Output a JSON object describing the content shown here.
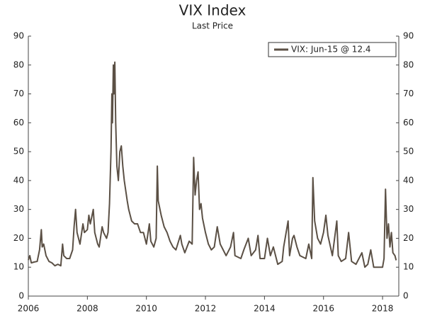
{
  "chart_data": {
    "type": "line",
    "title": "VIX Index",
    "subtitle": "Last Price",
    "legend": "top-right",
    "xlim": [
      2006,
      2018.55
    ],
    "xticks": [
      2006,
      2008,
      2010,
      2012,
      2014,
      2016,
      2018
    ],
    "ylim": [
      0,
      90
    ],
    "yticks": [
      0,
      10,
      20,
      30,
      40,
      50,
      60,
      70,
      80,
      90
    ],
    "y2lim": [
      0,
      90
    ],
    "y2ticks": [
      0,
      10,
      20,
      30,
      40,
      50,
      60,
      70,
      80,
      90
    ],
    "x": [
      2006.0,
      2006.05,
      2006.1,
      2006.2,
      2006.3,
      2006.38,
      2006.44,
      2006.47,
      2006.52,
      2006.6,
      2006.7,
      2006.8,
      2006.9,
      2007.0,
      2007.1,
      2007.16,
      2007.2,
      2007.3,
      2007.4,
      2007.5,
      2007.55,
      2007.6,
      2007.65,
      2007.75,
      2007.85,
      2007.9,
      2008.0,
      2008.05,
      2008.1,
      2008.2,
      2008.25,
      2008.35,
      2008.4,
      2008.5,
      2008.55,
      2008.65,
      2008.7,
      2008.75,
      2008.8,
      2008.83,
      2008.85,
      2008.88,
      2008.9,
      2008.93,
      2008.96,
      2009.0,
      2009.05,
      2009.1,
      2009.15,
      2009.2,
      2009.25,
      2009.35,
      2009.4,
      2009.5,
      2009.6,
      2009.7,
      2009.8,
      2009.9,
      2010.0,
      2010.1,
      2010.15,
      2010.25,
      2010.33,
      2010.37,
      2010.4,
      2010.5,
      2010.6,
      2010.7,
      2010.8,
      2010.9,
      2011.0,
      2011.15,
      2011.2,
      2011.3,
      2011.45,
      2011.55,
      2011.6,
      2011.65,
      2011.7,
      2011.75,
      2011.8,
      2011.85,
      2011.9,
      2012.0,
      2012.1,
      2012.2,
      2012.3,
      2012.4,
      2012.5,
      2012.6,
      2012.7,
      2012.85,
      2012.95,
      2013.0,
      2013.2,
      2013.3,
      2013.45,
      2013.55,
      2013.7,
      2013.78,
      2013.85,
      2014.0,
      2014.1,
      2014.2,
      2014.3,
      2014.45,
      2014.6,
      2014.65,
      2014.8,
      2014.85,
      2014.95,
      2015.0,
      2015.1,
      2015.2,
      2015.4,
      2015.5,
      2015.6,
      2015.64,
      2015.7,
      2015.8,
      2015.9,
      2016.0,
      2016.08,
      2016.15,
      2016.3,
      2016.45,
      2016.5,
      2016.6,
      2016.75,
      2016.85,
      2016.95,
      2017.1,
      2017.3,
      2017.4,
      2017.5,
      2017.6,
      2017.7,
      2017.85,
      2018.0,
      2018.05,
      2018.1,
      2018.15,
      2018.2,
      2018.25,
      2018.3,
      2018.35,
      2018.42,
      2018.46
    ],
    "series": [
      {
        "name": "VIX: Jun-15 @ 12.4",
        "color": "#5b5045",
        "values": [
          12.5,
          14,
          11.5,
          11.8,
          12,
          16,
          23,
          17,
          18,
          14,
          12,
          11.5,
          10.5,
          11,
          10.5,
          18,
          14,
          13,
          13,
          16,
          24,
          30,
          22,
          18,
          25,
          22,
          23,
          28,
          25,
          30,
          22,
          18,
          17,
          24,
          22,
          20,
          22,
          32,
          50,
          70,
          60,
          80,
          70,
          81,
          60,
          45,
          40,
          50,
          52,
          45,
          40,
          33,
          30,
          26,
          25,
          25,
          22,
          22,
          18,
          25,
          19,
          17,
          20,
          45,
          33,
          28,
          24,
          22,
          19,
          17,
          16,
          21,
          18,
          15,
          19,
          18,
          48,
          35,
          40,
          43,
          30,
          32,
          27,
          22,
          18,
          16,
          17,
          24,
          18,
          16,
          14,
          17,
          22,
          14,
          13,
          16,
          20,
          14,
          16,
          21,
          13,
          13,
          20,
          14,
          17,
          11,
          12,
          17,
          26,
          14,
          20,
          21,
          17,
          14,
          13,
          18,
          13,
          41,
          26,
          20,
          18,
          22,
          28,
          21,
          14,
          26,
          14,
          12,
          13,
          22,
          12,
          11,
          15,
          10,
          11,
          16,
          10,
          10,
          10,
          13,
          37,
          20,
          25,
          17,
          22,
          15,
          14,
          12.4
        ]
      }
    ]
  }
}
